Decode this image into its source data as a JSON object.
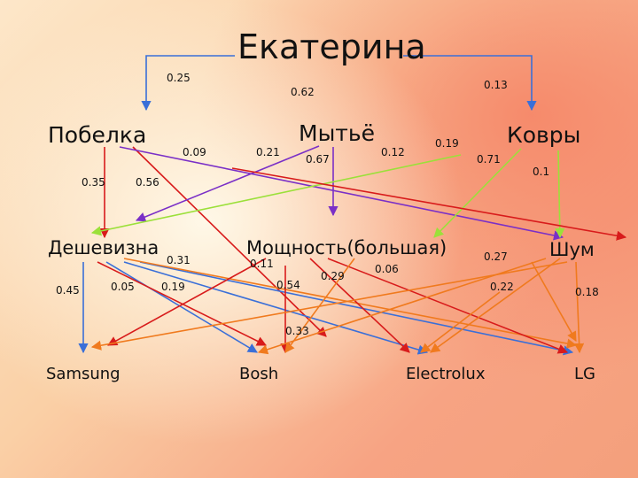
{
  "goal": "Екатерина",
  "criteria": [
    "Побелка",
    "Мытьё",
    "Ковры"
  ],
  "subcriteria": [
    "Дешевизна",
    "Мощность(большая)",
    "Шум"
  ],
  "alternatives": [
    "Samsung",
    "Bosh",
    "Electrolux",
    "LG"
  ],
  "weights": {
    "goal_criteria": [
      "0.25",
      "0.62",
      "0.13"
    ],
    "pobelka": [
      "0.35",
      "0.56",
      "0.09"
    ],
    "mytyo": [
      "0.21",
      "0.67",
      "0.12"
    ],
    "kovry": [
      "0.19",
      "0.71",
      "0.1"
    ],
    "cheapness": [
      "0.45",
      "0.05",
      "0.31",
      "0.19"
    ],
    "power": [
      "0.11",
      "0.54",
      "0.29",
      "0.06"
    ],
    "noise": [
      "0.27",
      "0.22",
      "0.18"
    ],
    "center": [
      "0.33"
    ]
  },
  "colors": {
    "blue": "#3a6fd8",
    "red": "#d81b1b",
    "purple": "#7a2fc7",
    "green": "#9be03a",
    "orange": "#f07a1e",
    "text": "#111111"
  }
}
